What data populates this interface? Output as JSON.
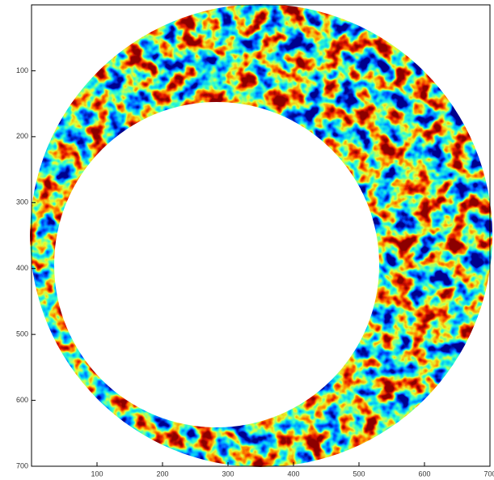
{
  "chart_data": {
    "type": "image",
    "colormap": "jet",
    "xlim": [
      0,
      700
    ],
    "ylim": [
      0,
      700
    ],
    "y_reversed": true,
    "xticks": [
      100,
      200,
      300,
      400,
      500,
      600,
      700
    ],
    "yticks": [
      100,
      200,
      300,
      400,
      500,
      600,
      700
    ]
  }
}
